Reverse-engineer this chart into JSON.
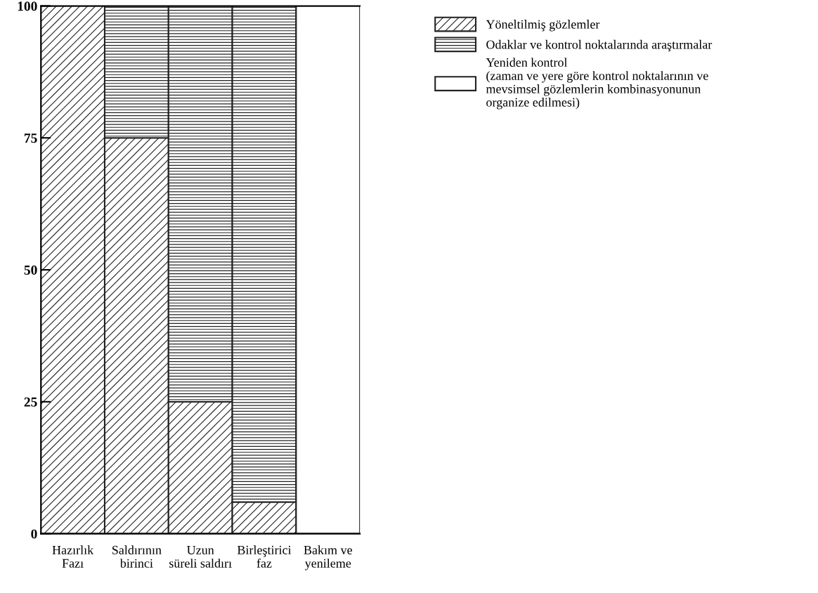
{
  "chart_data": {
    "type": "bar",
    "stacked": true,
    "categories": [
      "Hazırlık\nFazı",
      "Saldırının\nbirinci",
      "Uzun\nsüreli saldırı",
      "Birleştirici\nfaz",
      "Bakım ve\nyenileme"
    ],
    "series": [
      {
        "name": "Yöneltilmiş gözlemler",
        "color": "#222222",
        "values": [
          100,
          75,
          25,
          6,
          0
        ]
      },
      {
        "name": "Odaklar ve kontrol noktalarında araştırmalar",
        "color": "#222222",
        "values": [
          0,
          25,
          75,
          94,
          0
        ]
      },
      {
        "name": "Yeniden kontrol\n(zaman ve yere göre kontrol noktalarının ve\nmevsimsel gözlemlerin kombinasyonunun\norganize edilmesi)",
        "color": "#ffffff",
        "values": [
          0,
          0,
          0,
          0,
          100
        ]
      }
    ],
    "ylim": [
      0,
      100
    ],
    "yticks": [
      0,
      25,
      50,
      75,
      100
    ],
    "grid": false,
    "legend": "top right"
  }
}
